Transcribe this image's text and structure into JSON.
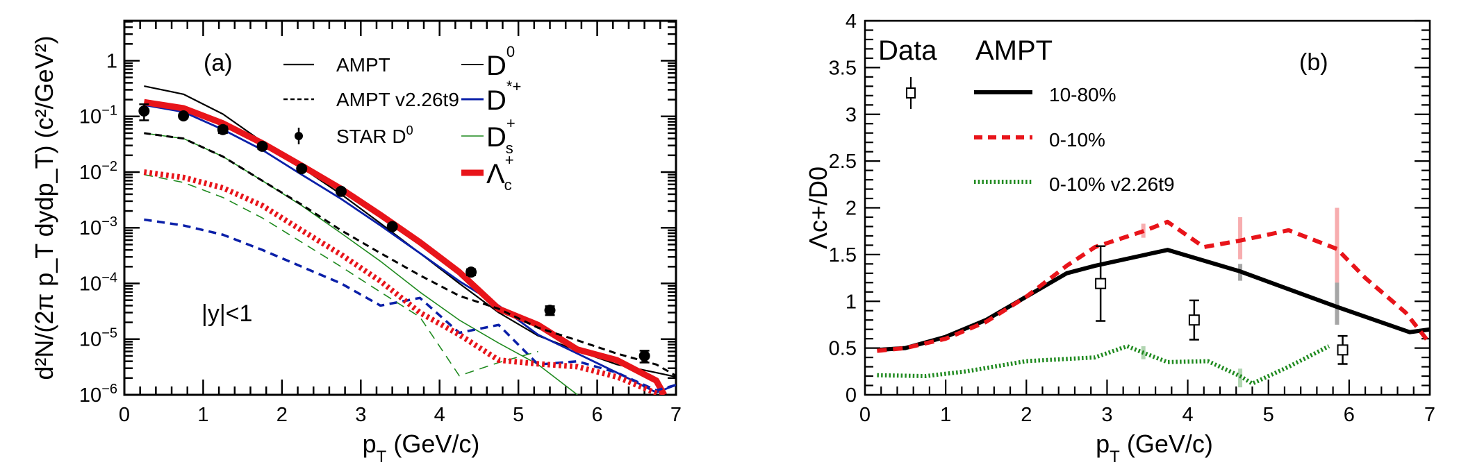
{
  "chart_data": [
    {
      "type": "line",
      "panel_label": "(a)",
      "annotation": "|y|<1",
      "xlabel": "p_T (GeV/c)",
      "xlabel_main": "p",
      "xlabel_sub": "T",
      "xlabel_rest": " (GeV/c)",
      "ylabel": "d²N/(2π p_T dydp_T) (c²/GeV²)",
      "xlim": [
        0,
        7
      ],
      "ylim": [
        1e-06,
        5.2
      ],
      "yscale": "log",
      "xticks": [
        "0",
        "1",
        "2",
        "3",
        "4",
        "5",
        "6",
        "7"
      ],
      "yticks": [
        {
          "value": 1,
          "base": "1",
          "exp": ""
        },
        {
          "value": 0.1,
          "base": "10",
          "exp": "−1"
        },
        {
          "value": 0.01,
          "base": "10",
          "exp": "−2"
        },
        {
          "value": 0.001,
          "base": "10",
          "exp": "−3"
        },
        {
          "value": 0.0001,
          "base": "10",
          "exp": "−4"
        },
        {
          "value": 1e-05,
          "base": "10",
          "exp": "−5"
        },
        {
          "value": 1e-06,
          "base": "10",
          "exp": "−6"
        }
      ],
      "legend_left": [
        {
          "label": "AMPT",
          "style": "solid-black"
        },
        {
          "label": "AMPT v2.26t9",
          "style": "dashed-black"
        },
        {
          "label": "STAR D",
          "sup": "0",
          "style": "marker"
        }
      ],
      "legend_right": [
        {
          "label": "D",
          "sup": "0",
          "sub": "",
          "color": "#000000",
          "width": 2
        },
        {
          "label": "D",
          "sup": "*+",
          "sub": "",
          "color": "#0a1fa8",
          "width": 3
        },
        {
          "label": "D",
          "sup": "+",
          "sub": "s",
          "color": "#1f8a1f",
          "width": 1.5
        },
        {
          "label": "Λ",
          "sup": "+",
          "sub": "c",
          "color": "#e8141a",
          "width": 9
        }
      ],
      "series": [
        {
          "name": "AMPT D0",
          "color": "#000000",
          "dash": "solid",
          "x": [
            0.25,
            0.75,
            1.25,
            1.75,
            2.25,
            2.75,
            3.25,
            3.75,
            4.25,
            4.75,
            5.25,
            5.75,
            6.25,
            6.75,
            7.0
          ],
          "y": [
            0.35,
            0.25,
            0.11,
            0.035,
            0.012,
            0.004,
            0.0012,
            0.00035,
            0.0001,
            3e-05,
            1.15e-05,
            6.2e-06,
            3.5e-06,
            2.5e-06,
            2.1e-06
          ]
        },
        {
          "name": "AMPT D*+",
          "color": "#0a1fa8",
          "dash": "solid",
          "x": [
            0.25,
            0.75,
            1.25,
            1.75,
            2.25,
            2.75,
            3.25,
            3.75,
            4.25,
            4.75,
            5.25,
            5.75,
            6.25,
            6.75,
            7.0
          ],
          "y": [
            0.16,
            0.12,
            0.058,
            0.025,
            0.009,
            0.0033,
            0.0011,
            0.00035,
            0.00011,
            4e-05,
            1.2e-05,
            5.5e-06,
            2.5e-06,
            1.1e-06,
            1.5e-06
          ]
        },
        {
          "name": "AMPT Ds+",
          "color": "#1f8a1f",
          "dash": "solid",
          "x": [
            0.25,
            0.75,
            1.25,
            1.75,
            2.25,
            2.75,
            3.25,
            3.75,
            4.25,
            4.75,
            5.25,
            5.75
          ],
          "y": [
            0.05,
            0.04,
            0.019,
            0.007,
            0.0025,
            0.0008,
            0.00025,
            7e-05,
            2.2e-05,
            8.5e-06,
            3.5e-06,
            1e-06
          ]
        },
        {
          "name": "AMPT Lambda_c+",
          "color": "#e8141a",
          "dash": "solid",
          "x": [
            0.25,
            0.75,
            1.25,
            1.75,
            2.25,
            2.75,
            3.25,
            3.75,
            4.25,
            4.75,
            5.25,
            5.75,
            6.25,
            6.75,
            6.85
          ],
          "y": [
            0.18,
            0.14,
            0.075,
            0.033,
            0.013,
            0.005,
            0.0017,
            0.00055,
            0.00016,
            3.5e-05,
            1.8e-05,
            6.5e-06,
            4.2e-06,
            1.8e-06,
            1e-06
          ]
        },
        {
          "name": "AMPT v2.26t9 D0",
          "color": "#000000",
          "dash": "dashed",
          "x": [
            0.25,
            0.75,
            1.25,
            1.75,
            2.25,
            2.75,
            3.25,
            3.75,
            4.25,
            4.75,
            5.25,
            5.75,
            6.25,
            6.75,
            7.0
          ],
          "y": [
            0.05,
            0.04,
            0.019,
            0.007,
            0.0026,
            0.0009,
            0.00035,
            0.00014,
            6e-05,
            3.5e-05,
            1.6e-05,
            9.5e-06,
            5.5e-06,
            3.5e-06,
            2.2e-06
          ]
        },
        {
          "name": "AMPT v2.26t9 D*+",
          "color": "#0a1fa8",
          "dash": "dashed",
          "x": [
            0.25,
            0.75,
            1.25,
            1.75,
            2.25,
            2.75,
            3.25,
            3.75,
            4.25,
            4.75,
            5.25,
            5.75,
            6.25,
            6.75,
            7.0
          ],
          "y": [
            0.0014,
            0.0011,
            0.00075,
            0.0004,
            0.0002,
            0.0001,
            4e-05,
            5.5e-05,
            1.3e-05,
            1.8e-05,
            3.5e-06,
            4e-06,
            2.5e-06,
            1.2e-06,
            1.5e-06
          ]
        },
        {
          "name": "AMPT v2.26t9 Ds+",
          "color": "#1f8a1f",
          "dash": "dashed",
          "x": [
            0.25,
            0.75,
            1.25,
            1.75,
            2.25,
            2.75,
            3.25,
            3.75,
            4.25,
            4.75,
            5.25
          ],
          "y": [
            0.009,
            0.0065,
            0.0035,
            0.0015,
            0.00055,
            0.0002,
            7e-05,
            2.5e-05,
            2.2e-06,
            3.8e-06,
            6e-06
          ]
        },
        {
          "name": "AMPT v2.26t9 Lambda_c+",
          "color": "#e8141a",
          "dash": "dotted",
          "x": [
            0.25,
            0.75,
            1.25,
            1.75,
            2.25,
            2.75,
            3.25,
            3.75,
            4.25,
            4.75,
            5.25,
            5.75,
            6.25,
            6.8
          ],
          "y": [
            0.01,
            0.008,
            0.0052,
            0.0025,
            0.0009,
            0.00033,
            0.00011,
            3e-05,
            1.2e-05,
            4.2e-06,
            3.6e-06,
            3.2e-06,
            2.1e-06,
            1e-06
          ]
        }
      ],
      "points": {
        "name": "STAR D0",
        "x": [
          0.25,
          0.75,
          1.25,
          1.75,
          2.25,
          2.75,
          3.4,
          4.4,
          5.4,
          6.6
        ],
        "y": [
          0.125,
          0.102,
          0.058,
          0.029,
          0.0115,
          0.0045,
          0.00105,
          0.00016,
          3.3e-05,
          5e-06
        ],
        "err": [
          0.04,
          0.008,
          0.008,
          0.003,
          0.001,
          0.0004,
          0.0001,
          2e-05,
          6e-06,
          1.2e-06
        ]
      }
    },
    {
      "type": "line",
      "panel_label": "(b)",
      "xlabel": "p_T (GeV/c)",
      "xlabel_main": "p",
      "xlabel_sub": "T",
      "xlabel_rest": " (GeV/c)",
      "ylabel": "Λc+/D0",
      "xlim": [
        0,
        7
      ],
      "ylim": [
        0,
        4
      ],
      "yscale": "linear",
      "xticks": [
        "0",
        "1",
        "2",
        "3",
        "4",
        "5",
        "6",
        "7"
      ],
      "yticks": [
        "0",
        "0.5",
        "1",
        "1.5",
        "2",
        "2.5",
        "3",
        "3.5",
        "4"
      ],
      "legend": {
        "data_header": "Data",
        "model_header": "AMPT",
        "entries": [
          {
            "label": "10-80%",
            "color": "#000000",
            "dash": "solid"
          },
          {
            "label": "0-10%",
            "color": "#e8141a",
            "dash": "dashed"
          },
          {
            "label": "0-10% v2.26t9",
            "color": "#1f8a1f",
            "dash": "dotted"
          }
        ]
      },
      "series": [
        {
          "name": "10-80%",
          "color": "#000000",
          "dash": "solid",
          "x": [
            0.15,
            0.5,
            1.0,
            1.5,
            2.0,
            2.5,
            2.85,
            3.75,
            4.65,
            5.85,
            6.75,
            7.0
          ],
          "y": [
            0.48,
            0.5,
            0.62,
            0.8,
            1.05,
            1.3,
            1.38,
            1.55,
            1.32,
            0.94,
            0.67,
            0.7
          ]
        },
        {
          "name": "0-10%",
          "color": "#e8141a",
          "dash": "dashed",
          "x": [
            0.15,
            0.5,
            1.0,
            1.5,
            2.0,
            2.5,
            2.85,
            3.45,
            3.75,
            4.2,
            4.65,
            5.25,
            5.85,
            6.2,
            6.7,
            7.0
          ],
          "y": [
            0.47,
            0.5,
            0.6,
            0.78,
            1.05,
            1.38,
            1.58,
            1.75,
            1.85,
            1.58,
            1.65,
            1.76,
            1.56,
            1.25,
            0.88,
            0.55
          ]
        },
        {
          "name": "0-10% v2.26t9",
          "color": "#1f8a1f",
          "dash": "dotted",
          "x": [
            0.15,
            0.75,
            1.25,
            2.0,
            2.85,
            3.25,
            3.45,
            3.75,
            4.25,
            4.65,
            4.8,
            5.25,
            5.75
          ],
          "y": [
            0.21,
            0.2,
            0.25,
            0.36,
            0.4,
            0.52,
            0.45,
            0.35,
            0.36,
            0.2,
            0.12,
            0.3,
            0.52
          ]
        }
      ],
      "bands": [
        {
          "series": "0-10%",
          "x": 3.45,
          "low": 1.68,
          "high": 1.83
        },
        {
          "series": "0-10%",
          "x": 4.65,
          "low": 1.45,
          "high": 1.9
        },
        {
          "series": "0-10%",
          "x": 5.85,
          "low": 1.2,
          "high": 2.0
        },
        {
          "series": "10-80%",
          "x": 4.65,
          "low": 1.22,
          "high": 1.4
        },
        {
          "series": "10-80%",
          "x": 5.85,
          "low": 0.75,
          "high": 1.2
        },
        {
          "series": "0-10% v2.26t9",
          "x": 3.45,
          "low": 0.38,
          "high": 0.52
        },
        {
          "series": "0-10% v2.26t9",
          "x": 4.65,
          "low": 0.08,
          "high": 0.28
        }
      ],
      "points": {
        "name": "Data",
        "x": [
          2.92,
          4.08,
          5.92
        ],
        "y": [
          1.19,
          0.8,
          0.48
        ],
        "err_low": [
          0.4,
          0.21,
          0.15
        ],
        "err_high": [
          0.4,
          0.21,
          0.15
        ]
      }
    }
  ]
}
